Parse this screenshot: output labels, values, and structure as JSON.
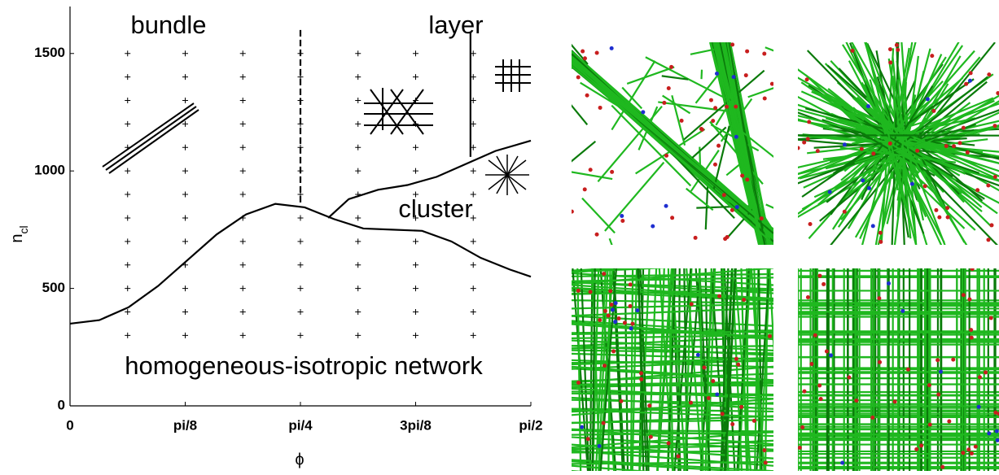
{
  "chart_data": {
    "type": "phase-diagram",
    "xlabel": "ϕ",
    "ylabel": "n",
    "ylabel_sub": "cl",
    "xlim": [
      0,
      1.5708
    ],
    "ylim": [
      0,
      1700
    ],
    "xticks": [
      0,
      {
        "value": 0.3927,
        "label": "pi/8"
      },
      {
        "value": 0.7854,
        "label": "pi/4"
      },
      {
        "value": 1.1781,
        "label": "3pi/8"
      },
      {
        "value": 1.5708,
        "label": "pi/2"
      }
    ],
    "yticks": [
      0,
      500,
      1000,
      1500
    ],
    "annotations": [
      "bundle",
      "layer",
      "cluster",
      "homogeneous-isotropic network"
    ],
    "sample_x": [
      0.1963,
      0.3927,
      0.589,
      0.7854,
      0.9817,
      1.1781,
      1.3744
    ],
    "sample_y": [
      1500,
      1400,
      1300,
      1200,
      1100,
      1000,
      900,
      800,
      700,
      600,
      500,
      400,
      300
    ],
    "boundaries": [
      {
        "style": "solid",
        "x": [
          0,
          0.1,
          0.2,
          0.3,
          0.4,
          0.5,
          0.6,
          0.7,
          0.8,
          0.9,
          1.0,
          1.1,
          1.2,
          1.3,
          1.4,
          1.5,
          1.5708
        ],
        "y": [
          350,
          365,
          420,
          510,
          620,
          730,
          815,
          860,
          845,
          795,
          755,
          750,
          745,
          700,
          630,
          580,
          550
        ]
      },
      {
        "style": "solid",
        "x": [
          0.88,
          0.95,
          1.05,
          1.15,
          1.25,
          1.35,
          1.45,
          1.5708
        ],
        "y": [
          800,
          880,
          920,
          940,
          975,
          1030,
          1085,
          1129
        ]
      },
      {
        "style": "dashed",
        "x": [
          0.7854,
          0.7854
        ],
        "y": [
          1600,
          860
        ]
      },
      {
        "style": "solid",
        "x": [
          1.365,
          1.365
        ],
        "y": [
          1590,
          1060
        ]
      }
    ]
  }
}
